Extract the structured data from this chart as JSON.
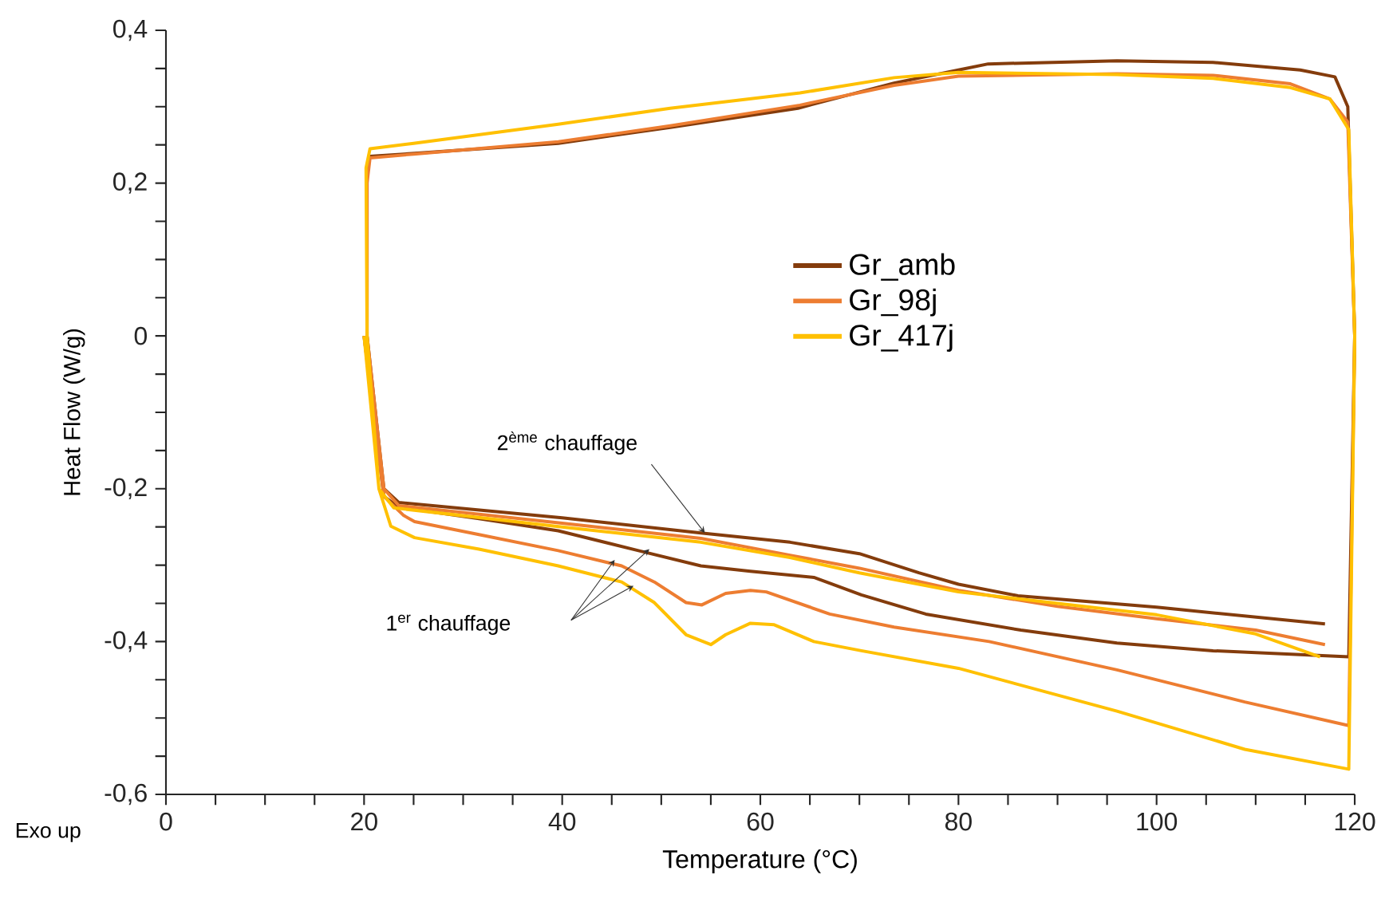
{
  "chart_data": {
    "type": "line",
    "xlabel": "Temperature (°C)",
    "ylabel": "Heat Flow (W/g)",
    "annotations": [
      {
        "text": "2$^{ème}$ chauffage",
        "x": 54.4,
        "y": -0.258
      },
      "1$^{er}$ chauffage",
      "Exo up"
    ],
    "xlim": [
      0,
      120
    ],
    "ylim": [
      -0.6,
      0.4
    ],
    "xticks": [
      0,
      20,
      40,
      60,
      80,
      100,
      120
    ],
    "yticks": [
      {
        "value": -0.6,
        "label": "-0,6"
      },
      {
        "value": -0.4,
        "label": "-0,4"
      },
      {
        "value": -0.2,
        "label": "-0,2"
      },
      {
        "value": 0,
        "label": "0"
      },
      {
        "value": 0.2,
        "label": "0,2"
      },
      {
        "value": 0.4,
        "label": "0,4"
      }
    ],
    "legend": "right",
    "series": [
      {
        "name": "Gr_amb",
        "color": "#843c0c",
        "x": [
          20,
          22,
          23.5,
          31.6,
          39.6,
          47.7,
          54,
          59,
          65.4,
          70.2,
          76.7,
          86.3,
          96,
          105.7,
          119.4,
          120,
          119.3,
          118,
          114.5,
          105.7,
          96,
          83,
          80,
          73.5,
          63.8,
          50.9,
          39.6,
          25.1,
          20.6,
          20.3,
          20.3,
          22,
          23.5,
          40,
          54,
          63,
          70,
          76,
          80,
          86,
          100,
          117
        ],
        "values": [
          0,
          -0.21,
          -0.224,
          -0.239,
          -0.255,
          -0.281,
          -0.301,
          -0.308,
          -0.316,
          -0.339,
          -0.364,
          -0.385,
          -0.402,
          -0.412,
          -0.42,
          0,
          0.3,
          0.339,
          0.348,
          0.358,
          0.36,
          0.356,
          0.348,
          0.331,
          0.298,
          0.273,
          0.252,
          0.239,
          0.235,
          0.22,
          0,
          -0.2,
          -0.218,
          -0.238,
          -0.258,
          -0.27,
          -0.285,
          -0.31,
          -0.325,
          -0.34,
          -0.355,
          -0.377
        ]
      },
      {
        "name": "Gr_98j",
        "color": "#ed7d31",
        "x": [
          20,
          22,
          24,
          25.1,
          31.6,
          39.6,
          46,
          49.3,
          52.5,
          54.1,
          56.5,
          59,
          60.6,
          67,
          73.5,
          83.1,
          96,
          108.9,
          119.4,
          120,
          119.3,
          117.5,
          113.5,
          105.7,
          96,
          80,
          73.5,
          64,
          50.9,
          39.6,
          25,
          20.6,
          20.3,
          20.3,
          22,
          23.5,
          40,
          54,
          63,
          70,
          80,
          90,
          100,
          110,
          117
        ],
        "values": [
          0,
          -0.21,
          -0.235,
          -0.243,
          -0.26,
          -0.281,
          -0.301,
          -0.322,
          -0.349,
          -0.352,
          -0.337,
          -0.333,
          -0.335,
          -0.364,
          -0.381,
          -0.4,
          -0.437,
          -0.479,
          -0.51,
          0,
          0.28,
          0.31,
          0.33,
          0.341,
          0.343,
          0.34,
          0.328,
          0.302,
          0.275,
          0.254,
          0.238,
          0.233,
          0.2,
          0,
          -0.2,
          -0.222,
          -0.245,
          -0.265,
          -0.287,
          -0.304,
          -0.333,
          -0.354,
          -0.37,
          -0.385,
          -0.404
        ]
      },
      {
        "name": "Gr_417j",
        "color": "#ffc000",
        "x": [
          20,
          21.5,
          22.7,
          25.1,
          31.6,
          39.6,
          46,
          49.3,
          52.5,
          55,
          56.5,
          59,
          61.4,
          65.4,
          70.2,
          80,
          96,
          108.9,
          119.4,
          120,
          119.4,
          117.5,
          113.5,
          105.7,
          96,
          80,
          73.5,
          64,
          50.9,
          39.6,
          25,
          20.6,
          20.2,
          20.3,
          21.5,
          23,
          40,
          54,
          63,
          70,
          80,
          90,
          100,
          110,
          116.5
        ],
        "values": [
          0,
          -0.2,
          -0.249,
          -0.264,
          -0.279,
          -0.301,
          -0.322,
          -0.349,
          -0.391,
          -0.404,
          -0.391,
          -0.376,
          -0.378,
          -0.4,
          -0.412,
          -0.435,
          -0.491,
          -0.541,
          -0.567,
          0,
          0.27,
          0.31,
          0.325,
          0.337,
          0.342,
          0.345,
          0.338,
          0.318,
          0.298,
          0.277,
          0.252,
          0.245,
          0.22,
          0,
          -0.2,
          -0.225,
          -0.25,
          -0.27,
          -0.29,
          -0.31,
          -0.335,
          -0.35,
          -0.365,
          -0.39,
          -0.42
        ]
      }
    ]
  }
}
